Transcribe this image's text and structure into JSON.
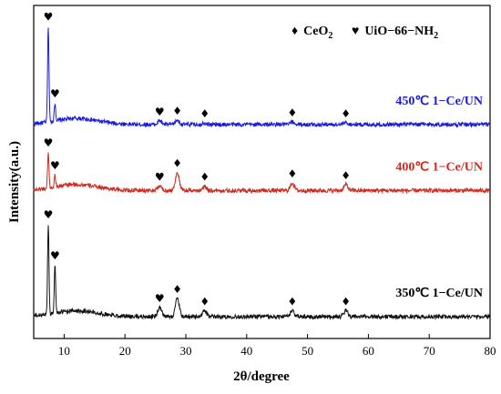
{
  "chart_data": {
    "type": "line",
    "xlabel": "2θ/degree",
    "ylabel": "Intensity(a.u.)",
    "xlim": [
      5,
      80
    ],
    "x_ticks": [
      10,
      20,
      30,
      40,
      50,
      60,
      70,
      80
    ],
    "y_ticks_shown": false,
    "grid": false,
    "legend": [
      {
        "symbol": "♦",
        "label": "CeO",
        "subscript": "2"
      },
      {
        "symbol": "♥",
        "label": "UiO−66−NH",
        "subscript": "2"
      }
    ],
    "legend_position": "top-right",
    "series": [
      {
        "name": "450℃ 1−Ce/UN",
        "color": "#1a1adf",
        "baseline": 0.64,
        "peaks": [
          {
            "x": 7.4,
            "height": 0.32,
            "phase": "UiO-66-NH2"
          },
          {
            "x": 8.5,
            "height": 0.06,
            "phase": "UiO-66-NH2"
          },
          {
            "x": 25.7,
            "height": 0.012,
            "phase": "UiO-66-NH2"
          },
          {
            "x": 28.6,
            "height": 0.014,
            "phase": "CeO2"
          },
          {
            "x": 33.1,
            "height": 0.006,
            "phase": "CeO2"
          },
          {
            "x": 47.5,
            "height": 0.008,
            "phase": "CeO2"
          },
          {
            "x": 56.3,
            "height": 0.006,
            "phase": "CeO2"
          }
        ]
      },
      {
        "name": "400℃ 1−Ce/UN",
        "color": "#cf2a1e",
        "baseline": 0.42,
        "peaks": [
          {
            "x": 7.4,
            "height": 0.12,
            "phase": "UiO-66-NH2"
          },
          {
            "x": 8.5,
            "height": 0.04,
            "phase": "UiO-66-NH2"
          },
          {
            "x": 25.7,
            "height": 0.015,
            "phase": "UiO-66-NH2"
          },
          {
            "x": 28.6,
            "height": 0.06,
            "phase": "CeO2"
          },
          {
            "x": 33.1,
            "height": 0.015,
            "phase": "CeO2"
          },
          {
            "x": 47.5,
            "height": 0.025,
            "phase": "CeO2"
          },
          {
            "x": 56.3,
            "height": 0.02,
            "phase": "CeO2"
          }
        ]
      },
      {
        "name": "350℃ 1−Ce/UN",
        "color": "#111111",
        "baseline": 0.0,
        "peaks": [
          {
            "x": 7.4,
            "height": 0.3,
            "phase": "UiO-66-NH2"
          },
          {
            "x": 8.5,
            "height": 0.16,
            "phase": "UiO-66-NH2"
          },
          {
            "x": 25.7,
            "height": 0.03,
            "phase": "UiO-66-NH2"
          },
          {
            "x": 28.6,
            "height": 0.06,
            "phase": "CeO2"
          },
          {
            "x": 33.1,
            "height": 0.02,
            "phase": "CeO2"
          },
          {
            "x": 47.5,
            "height": 0.02,
            "phase": "CeO2"
          },
          {
            "x": 56.3,
            "height": 0.02,
            "phase": "CeO2"
          }
        ]
      }
    ]
  }
}
